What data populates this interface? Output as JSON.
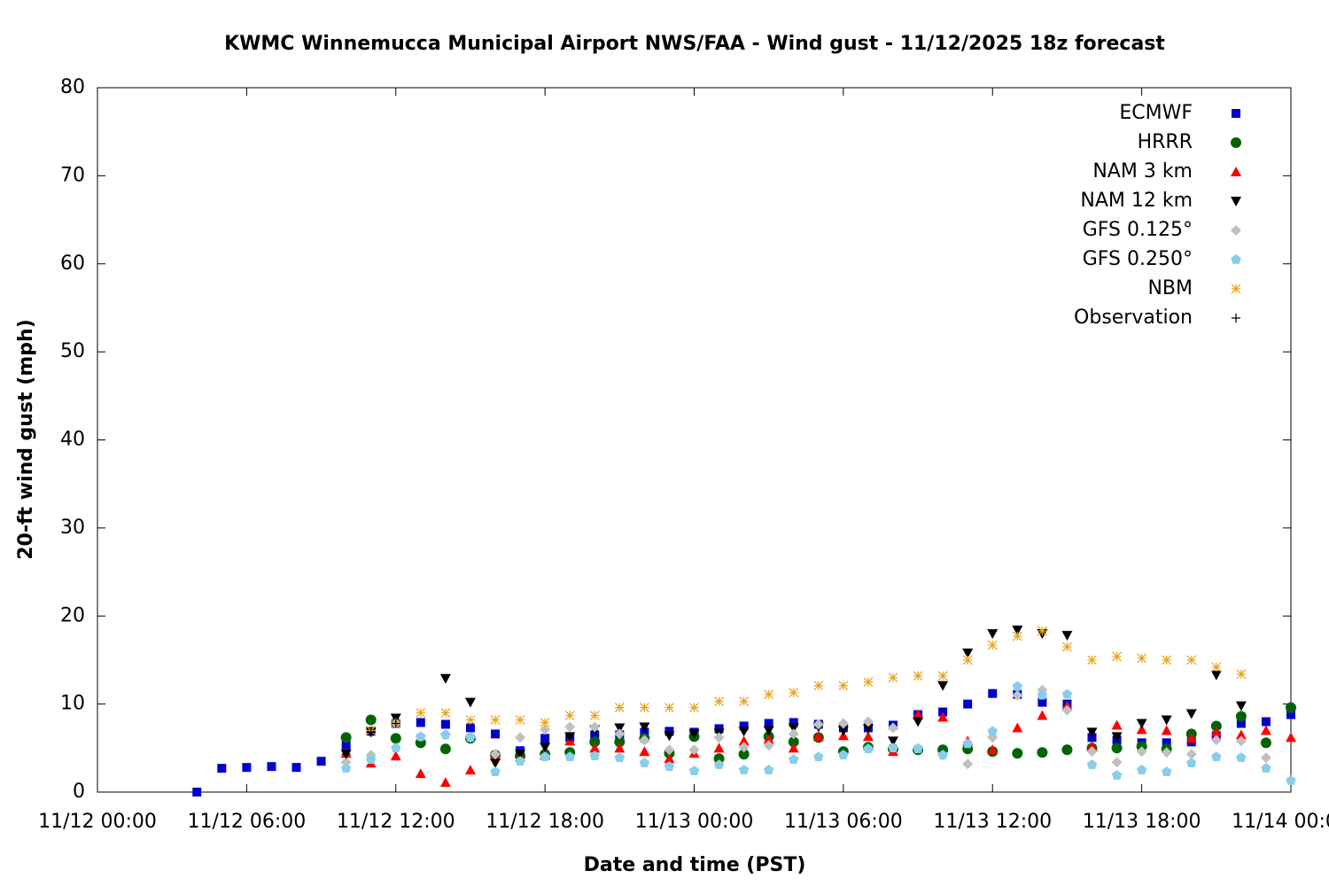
{
  "chart_data": {
    "type": "scatter",
    "title": "KWMC Winnemucca Municipal Airport NWS/FAA - Wind gust - 11/12/2025 18z forecast",
    "x_label": "Date and time (PST)",
    "y_label": "20-ft wind gust (mph)",
    "x": [
      "11/12 04:00",
      "11/12 05:00",
      "11/12 06:00",
      "11/12 07:00",
      "11/12 08:00",
      "11/12 09:00",
      "11/12 10:00",
      "11/12 11:00",
      "11/12 12:00",
      "11/12 13:00",
      "11/12 14:00",
      "11/12 15:00",
      "11/12 16:00",
      "11/12 17:00",
      "11/12 18:00",
      "11/12 19:00",
      "11/12 20:00",
      "11/12 21:00",
      "11/12 22:00",
      "11/12 23:00",
      "11/13 00:00",
      "11/13 01:00",
      "11/13 02:00",
      "11/13 03:00",
      "11/13 04:00",
      "11/13 05:00",
      "11/13 06:00",
      "11/13 07:00",
      "11/13 08:00",
      "11/13 09:00",
      "11/13 10:00",
      "11/13 11:00",
      "11/13 12:00",
      "11/13 13:00",
      "11/13 14:00",
      "11/13 15:00",
      "11/13 16:00",
      "11/13 17:00",
      "11/13 18:00",
      "11/13 19:00",
      "11/13 20:00",
      "11/13 21:00",
      "11/13 22:00",
      "11/13 23:00",
      "11/14 00:00"
    ],
    "xlim": [
      "11/12 00:00",
      "11/14 00:00"
    ],
    "xticks": [
      "11/12 00:00",
      "11/12 06:00",
      "11/12 12:00",
      "11/12 18:00",
      "11/13 00:00",
      "11/13 06:00",
      "11/13 12:00",
      "11/13 18:00",
      "11/14 00:00"
    ],
    "ylim": [
      0,
      80
    ],
    "yticks": [
      0,
      10,
      20,
      30,
      40,
      50,
      60,
      70,
      80
    ],
    "legend": "top-right",
    "series": [
      {
        "name": "ECMWF",
        "color": "#0000cc",
        "marker": "square",
        "values": [
          0.0,
          2.7,
          2.8,
          2.9,
          2.8,
          3.5,
          5.3,
          6.9,
          7.8,
          7.9,
          7.7,
          7.3,
          6.6,
          4.7,
          6.1,
          6.2,
          6.5,
          6.5,
          6.8,
          6.9,
          6.8,
          7.2,
          7.5,
          7.8,
          7.9,
          7.7,
          7.3,
          7.3,
          7.6,
          8.8,
          9.1,
          10.0,
          11.2,
          11.1,
          10.2,
          10.0,
          6.2,
          5.9,
          5.6,
          5.6,
          5.7,
          6.4,
          7.8,
          8.0,
          8.8
        ]
      },
      {
        "name": "HRRR",
        "color": "#006400",
        "marker": "circle",
        "values": [
          null,
          null,
          null,
          null,
          null,
          null,
          6.2,
          8.2,
          6.1,
          5.6,
          4.9,
          6.1,
          4.2,
          4.1,
          4.3,
          4.5,
          5.7,
          5.7,
          6.1,
          4.4,
          6.3,
          3.8,
          4.3,
          6.3,
          5.7,
          6.2,
          4.6,
          5.1,
          4.9,
          4.8,
          4.8,
          4.9,
          4.6,
          4.4,
          4.5,
          4.8,
          5.0,
          5.0,
          5.2,
          4.9,
          6.6,
          7.5,
          8.6,
          5.6,
          9.6
        ]
      },
      {
        "name": "NAM 3 km",
        "color": "#ff0000",
        "marker": "triangle-up",
        "values": [
          null,
          null,
          null,
          null,
          null,
          null,
          4.4,
          3.3,
          4.1,
          2.1,
          1.1,
          2.5,
          4.2,
          4.0,
          4.2,
          5.8,
          5.0,
          5.0,
          4.6,
          3.8,
          4.4,
          5.0,
          5.8,
          6.0,
          5.0,
          6.3,
          6.4,
          6.3,
          4.6,
          8.8,
          8.5,
          5.8,
          4.8,
          7.3,
          8.7,
          9.8,
          5.2,
          7.6,
          7.1,
          7.0,
          6.1,
          6.8,
          6.5,
          7.0,
          6.2
        ]
      },
      {
        "name": "NAM 12 km",
        "color": "#000000",
        "marker": "triangle-down",
        "values": [
          null,
          null,
          null,
          null,
          null,
          null,
          4.3,
          6.8,
          8.4,
          null,
          12.9,
          10.2,
          3.3,
          4.3,
          5.1,
          6.3,
          7.1,
          7.3,
          7.4,
          6.4,
          6.6,
          6.7,
          6.9,
          7.0,
          7.3,
          7.4,
          7.0,
          7.2,
          5.8,
          8.0,
          12.1,
          15.8,
          18.0,
          18.4,
          18.0,
          17.8,
          6.8,
          6.3,
          7.8,
          8.2,
          8.9,
          13.3,
          9.8,
          null,
          null
        ]
      },
      {
        "name": "GFS 0.125°",
        "color": "#c0c0c0",
        "marker": "diamond",
        "values": [
          null,
          null,
          null,
          null,
          null,
          null,
          3.4,
          4.2,
          7.8,
          6.3,
          6.5,
          6.2,
          4.3,
          6.2,
          7.1,
          7.4,
          7.4,
          6.6,
          5.9,
          4.8,
          4.8,
          6.2,
          5.1,
          5.3,
          6.6,
          7.7,
          7.8,
          8.0,
          7.3,
          5.0,
          4.2,
          3.2,
          6.2,
          11.0,
          11.6,
          9.3,
          4.6,
          3.4,
          4.6,
          4.5,
          4.3,
          5.9,
          5.8,
          3.9,
          null
        ]
      },
      {
        "name": "GFS 0.250°",
        "color": "#87ceeb",
        "marker": "pentagon",
        "values": [
          null,
          null,
          null,
          null,
          null,
          null,
          2.7,
          3.7,
          5.0,
          6.3,
          6.5,
          6.2,
          2.3,
          3.5,
          4.0,
          4.0,
          4.1,
          3.9,
          3.3,
          2.9,
          2.4,
          3.1,
          2.5,
          2.5,
          3.7,
          4.0,
          4.2,
          4.9,
          5.0,
          4.9,
          4.2,
          5.5,
          6.9,
          12.0,
          11.0,
          11.1,
          3.1,
          1.9,
          2.5,
          2.3,
          3.3,
          4.0,
          3.9,
          2.7,
          1.3
        ]
      },
      {
        "name": "NBM",
        "color": "#e8a317",
        "marker": "asterisk",
        "values": [
          null,
          null,
          null,
          null,
          null,
          null,
          null,
          7.0,
          7.8,
          9.0,
          9.0,
          8.2,
          8.2,
          8.2,
          7.9,
          8.7,
          8.7,
          9.6,
          9.6,
          9.6,
          9.6,
          10.3,
          10.3,
          11.1,
          11.3,
          12.1,
          12.1,
          12.5,
          13.0,
          13.2,
          13.2,
          15.0,
          16.7,
          17.7,
          18.3,
          16.5,
          15.0,
          15.4,
          15.2,
          15.0,
          15.0,
          14.2,
          13.4,
          null,
          null
        ]
      },
      {
        "name": "Observation",
        "color": "#000000",
        "marker": "plus",
        "values": [
          null,
          null,
          null,
          null,
          null,
          null,
          4.3,
          6.8,
          7.8,
          null,
          null,
          null,
          null,
          null,
          null,
          null,
          null,
          null,
          null,
          null,
          null,
          null,
          null,
          null,
          null,
          null,
          null,
          null,
          null,
          null,
          null,
          null,
          null,
          null,
          null,
          null,
          null,
          null,
          null,
          null,
          null,
          null,
          null,
          null,
          null
        ]
      }
    ]
  }
}
